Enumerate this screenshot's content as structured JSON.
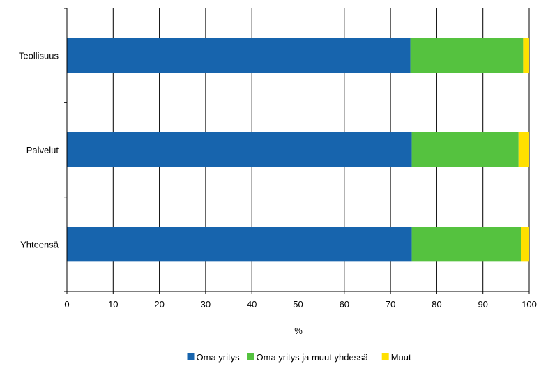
{
  "chart_data": {
    "type": "bar",
    "orientation": "horizontal",
    "stacked": true,
    "categories": [
      "Teollisuus",
      "Palvelut",
      "Yhteensä"
    ],
    "series": [
      {
        "name": "Oma yritys",
        "values": [
          74.3,
          74.6,
          74.6
        ],
        "color": "#1764ad"
      },
      {
        "name": "Oma yritys ja muut yhdessä",
        "values": [
          24.4,
          23.1,
          23.7
        ],
        "color": "#55c23f"
      },
      {
        "name": "Muut",
        "values": [
          1.3,
          2.3,
          1.7
        ],
        "color": "#ffe000"
      }
    ],
    "xlabel": "%",
    "ylabel": "",
    "xlim": [
      0,
      100
    ],
    "xticks": [
      "0",
      "10",
      "20",
      "30",
      "40",
      "50",
      "60",
      "70",
      "80",
      "90",
      "100"
    ],
    "grid": true,
    "legend": "bottom"
  }
}
